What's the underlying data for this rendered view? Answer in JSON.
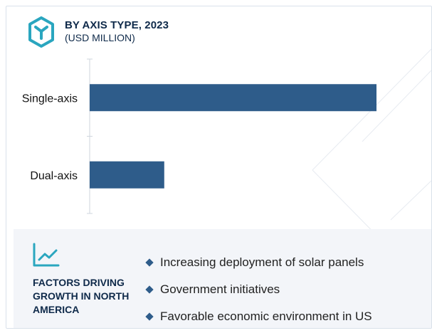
{
  "header": {
    "title": "BY AXIS TYPE, 2023",
    "subtitle": "(USD MILLION)",
    "logo_icon": "hexagon-y-icon"
  },
  "chart_data": {
    "type": "bar",
    "orientation": "horizontal",
    "categories": [
      "Single-axis",
      "Dual-axis"
    ],
    "values": [
      100,
      26
    ],
    "title": "BY AXIS TYPE, 2023",
    "subtitle": "(USD MILLION)",
    "xlabel": "",
    "ylabel": "",
    "xlim": [
      0,
      100
    ],
    "grid": false,
    "legend": "none",
    "value_axis_visible": false,
    "bar_color": "#2e5c8a"
  },
  "factors": {
    "icon": "trend-line-icon",
    "heading": "FACTORS DRIVING GROWTH IN NORTH AMERICA",
    "items": [
      "Increasing deployment of solar panels",
      "Government initiatives",
      "Favorable economic environment in US"
    ]
  },
  "colors": {
    "accent": "#2e5c8a",
    "teal": "#2aa6bf",
    "heading": "#0f2a4a",
    "panel_bg": "#f3f5f9"
  }
}
